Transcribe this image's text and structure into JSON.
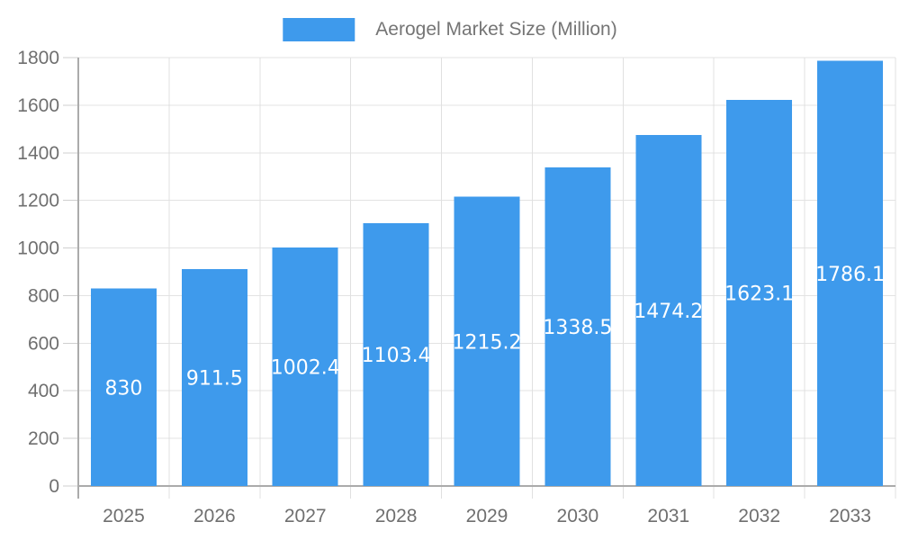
{
  "legend": {
    "label": "Aerogel Market Size (Million)"
  },
  "chart_data": {
    "type": "bar",
    "title": "Aerogel Market Size (Million)",
    "series_name": "Aerogel Market Size (Million)",
    "categories": [
      "2025",
      "2026",
      "2027",
      "2028",
      "2029",
      "2030",
      "2031",
      "2032",
      "2033"
    ],
    "values": [
      830,
      911.5,
      1002.4,
      1103.4,
      1215.2,
      1338.5,
      1474.2,
      1623.1,
      1786.1
    ],
    "value_labels": [
      "830",
      "911.5",
      "1002.4",
      "1103.4",
      "1215.2",
      "1338.5",
      "1474.2",
      "1623.1",
      "1786.1"
    ],
    "xlabel": "",
    "ylabel": "",
    "ylim": [
      0,
      1800
    ],
    "yticks": [
      0,
      200,
      400,
      600,
      800,
      1000,
      1200,
      1400,
      1600,
      1800
    ],
    "grid": true,
    "legend_position": "top-center",
    "value_label_position": "inside-center",
    "colors": {
      "bar": "#3E9AEC",
      "value_label": "#ffffff",
      "axis_label": "#6F6F6F",
      "grid_line": "#E3E3E3",
      "boundary_line": "#E0E0E0",
      "tick_mark": "#CFCFCF",
      "axis_line": "#ABABAB",
      "background": "#ffffff",
      "legend_text": "#757575"
    }
  }
}
